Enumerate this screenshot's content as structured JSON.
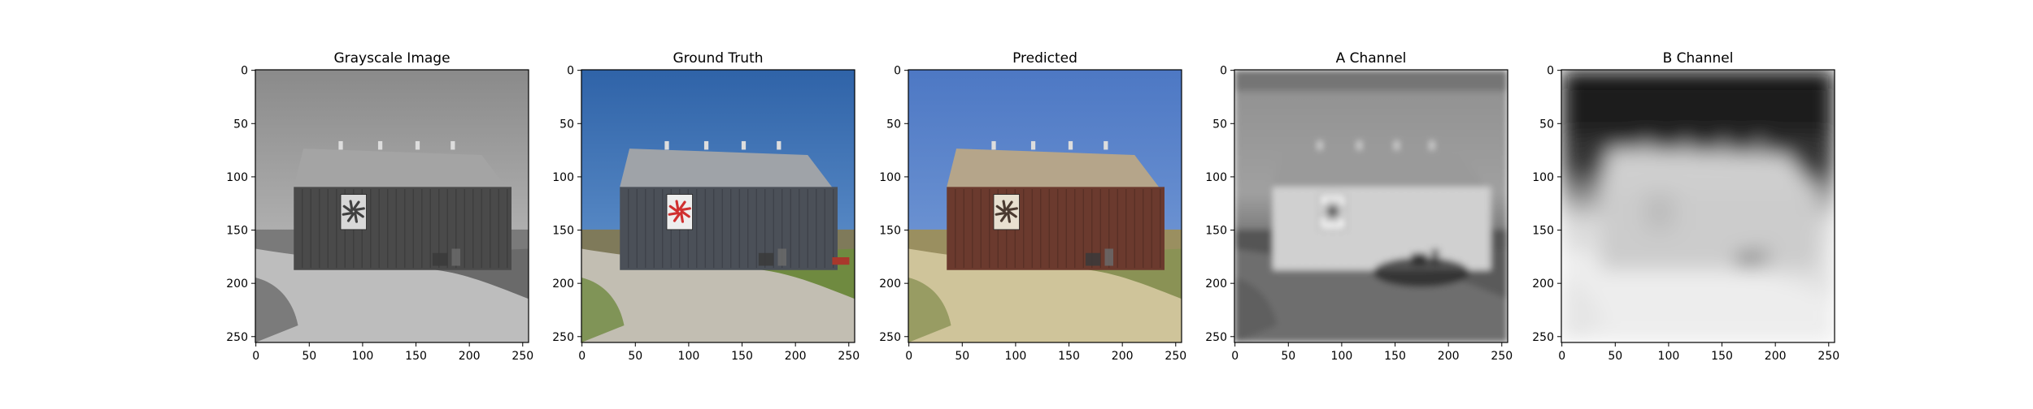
{
  "chart_data": {
    "type": "image-grid",
    "panels": [
      {
        "title": "Grayscale Image",
        "image_kind": "grayscale-photo",
        "xlim": [
          0,
          255
        ],
        "ylim": [
          255,
          0
        ],
        "xticks": [
          0,
          50,
          100,
          150,
          200,
          250
        ],
        "yticks": [
          0,
          50,
          100,
          150,
          200,
          250
        ]
      },
      {
        "title": "Ground Truth",
        "image_kind": "color-photo",
        "xlim": [
          0,
          255
        ],
        "ylim": [
          255,
          0
        ],
        "xticks": [
          0,
          50,
          100,
          150,
          200,
          250
        ],
        "yticks": [
          0,
          50,
          100,
          150,
          200,
          250
        ]
      },
      {
        "title": "Predicted",
        "image_kind": "predicted-color-photo",
        "xlim": [
          0,
          255
        ],
        "ylim": [
          255,
          0
        ],
        "xticks": [
          0,
          50,
          100,
          150,
          200,
          250
        ],
        "yticks": [
          0,
          50,
          100,
          150,
          200,
          250
        ]
      },
      {
        "title": "A Channel",
        "image_kind": "a-channel-map",
        "xlim": [
          0,
          255
        ],
        "ylim": [
          255,
          0
        ],
        "xticks": [
          0,
          50,
          100,
          150,
          200,
          250
        ],
        "yticks": [
          0,
          50,
          100,
          150,
          200,
          250
        ]
      },
      {
        "title": "B Channel",
        "image_kind": "b-channel-map",
        "xlim": [
          0,
          255
        ],
        "ylim": [
          255,
          0
        ],
        "xticks": [
          0,
          50,
          100,
          150,
          200,
          250
        ],
        "yticks": [
          0,
          50,
          100,
          150,
          200,
          250
        ]
      }
    ]
  },
  "colors": {
    "sky_truth": "#3f78b8",
    "sky_pred": "#5a85c8",
    "barn_wall_gray": "#505050",
    "barn_wall_pred": "#6b3a2e",
    "roof_gray": "#a8a8a8",
    "roof_pred": "#b5a58a",
    "gravel_gray": "#b4b4b4",
    "gravel_pred": "#cfc49a",
    "grass_truth": "#6f8a40",
    "quilt_red": "#d03030"
  }
}
